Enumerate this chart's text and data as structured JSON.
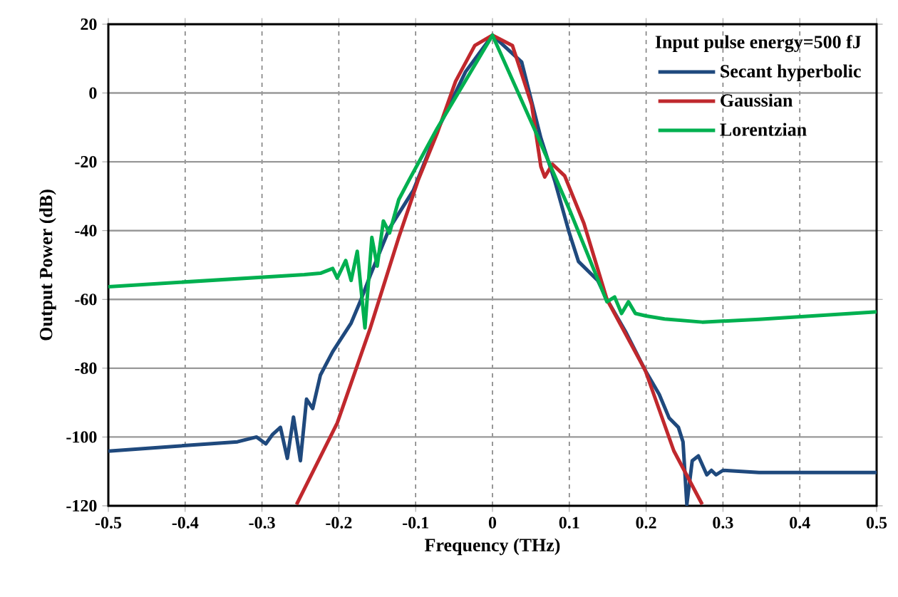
{
  "chart_data": {
    "type": "line",
    "xlabel": "Frequency (THz)",
    "ylabel": "Output Power (dB)",
    "legend_title": "Input pulse energy=500 fJ",
    "xlim": [
      -0.5,
      0.5
    ],
    "xticks": [
      -0.5,
      -0.4,
      -0.3,
      -0.2,
      -0.1,
      0,
      0.1,
      0.2,
      0.3,
      0.4,
      0.5
    ],
    "ylim": [
      -120,
      20
    ],
    "yticks": [
      -120,
      -100,
      -80,
      -60,
      -40,
      -20,
      0,
      20
    ],
    "grid": true,
    "legend": "top right",
    "marker": "none",
    "line_style": "solid",
    "series": [
      {
        "name": "Secant hyperbolic",
        "color": "#1f497d",
        "x": [
          -0.5,
          -0.332,
          -0.307,
          -0.295,
          -0.286,
          -0.276,
          -0.267,
          -0.259,
          -0.25,
          -0.242,
          -0.234,
          -0.224,
          -0.208,
          -0.184,
          -0.171,
          -0.159,
          -0.134,
          -0.103,
          -0.072,
          -0.035,
          0,
          0.038,
          0.063,
          0.081,
          0.1,
          0.112,
          0.137,
          0.149,
          0.174,
          0.199,
          0.217,
          0.23,
          0.242,
          0.248,
          0.253,
          0.26,
          0.268,
          0.279,
          0.285,
          0.291,
          0.3,
          0.347,
          0.5
        ],
        "values": [
          -104.1,
          -101.4,
          -100,
          -102,
          -99.2,
          -97.2,
          -106.2,
          -94.2,
          -106.9,
          -89,
          -91.7,
          -82,
          -75.2,
          -66.9,
          -60,
          -53,
          -39.3,
          -28.3,
          -11,
          6.2,
          16.8,
          9,
          -13.1,
          -25.5,
          -40.7,
          -49,
          -54.5,
          -60,
          -69.7,
          -80.7,
          -87.6,
          -94.5,
          -97.2,
          -101.4,
          -119.6,
          -106.9,
          -105.5,
          -111,
          -109.7,
          -111,
          -109.7,
          -110.3,
          -110.3
        ]
      },
      {
        "name": "Gaussian",
        "color": "#c0282d",
        "x": [
          -0.255,
          -0.202,
          -0.159,
          -0.122,
          -0.097,
          -0.072,
          -0.048,
          -0.023,
          0,
          0.026,
          0.051,
          0.063,
          0.068,
          0.078,
          0.094,
          0.119,
          0.149,
          0.199,
          0.236,
          0.273
        ],
        "values": [
          -119.6,
          -95.9,
          -68.3,
          -42,
          -25.5,
          -11.7,
          3.4,
          13.8,
          16.8,
          13.8,
          -3.4,
          -21.4,
          -24.4,
          -20.7,
          -24.1,
          -37.9,
          -60,
          -80.7,
          -104,
          -119.6
        ]
      },
      {
        "name": "Lorentzian",
        "color": "#00b050",
        "x": [
          -0.5,
          -0.245,
          -0.224,
          -0.208,
          -0.202,
          -0.191,
          -0.184,
          -0.176,
          -0.166,
          -0.157,
          -0.15,
          -0.142,
          -0.134,
          -0.122,
          -0.109,
          -0.072,
          0,
          0.057,
          0.1,
          0.149,
          0.159,
          0.168,
          0.177,
          0.186,
          0.2,
          0.224,
          0.273,
          0.347,
          0.5
        ],
        "values": [
          -56.3,
          -52.8,
          -52.4,
          -51,
          -53.8,
          -48.7,
          -54.5,
          -46,
          -68.3,
          -42,
          -50.3,
          -37.2,
          -40.7,
          -31,
          -25.5,
          -10.3,
          16.8,
          -11.7,
          -33.8,
          -60.7,
          -59.3,
          -64.1,
          -60.7,
          -64.1,
          -64.8,
          -65.7,
          -66.6,
          -65.8,
          -63.6
        ]
      }
    ]
  }
}
